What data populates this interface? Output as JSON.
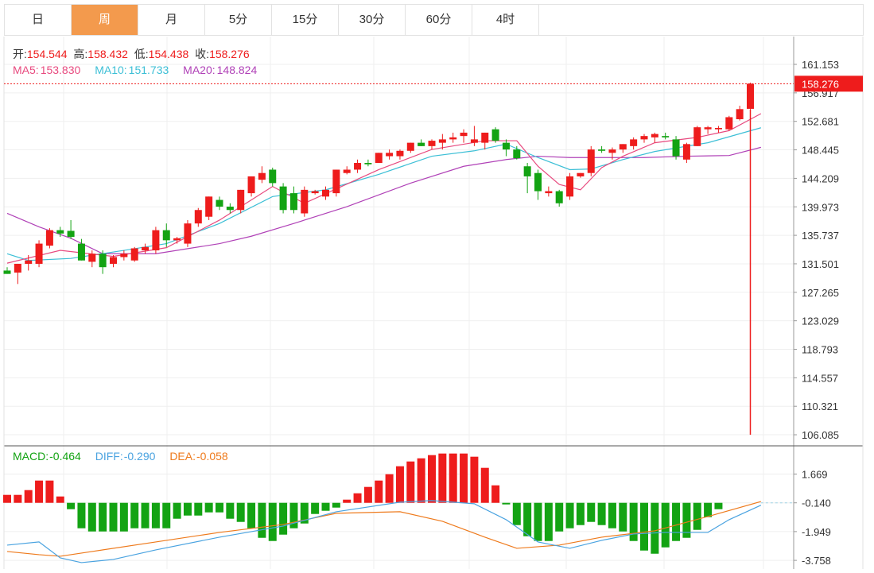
{
  "tabs": [
    {
      "label": "日",
      "active": false
    },
    {
      "label": "周",
      "active": true
    },
    {
      "label": "月",
      "active": false
    },
    {
      "label": "5分",
      "active": false
    },
    {
      "label": "15分",
      "active": false
    },
    {
      "label": "30分",
      "active": false
    },
    {
      "label": "60分",
      "active": false
    },
    {
      "label": "4时",
      "active": false
    }
  ],
  "ohlc_info": {
    "open_label": "开:",
    "open": "154.544",
    "high_label": "高:",
    "high": "158.432",
    "low_label": "低:",
    "low": "154.438",
    "close_label": "收:",
    "close": "158.276"
  },
  "ma_info": {
    "ma5_label": "MA5:",
    "ma5": "153.830",
    "ma10_label": "MA10:",
    "ma10": "151.733",
    "ma20_label": "MA20:",
    "ma20": "148.824"
  },
  "macd_info": {
    "macd_label": "MACD:",
    "macd": "-0.464",
    "diff_label": "DIFF:",
    "diff": "-0.290",
    "dea_label": "DEA:",
    "dea": "-0.058"
  },
  "colors": {
    "up": "#ee1c1c",
    "down": "#13a313",
    "ma5": "#e84a7f",
    "ma10": "#3cbfd6",
    "ma20": "#b041b7",
    "diff": "#4aa3e0",
    "dea": "#ee7a1c",
    "active_tab": "#f39a4d"
  },
  "chart_data": [
    {
      "type": "candlestick",
      "y_ticks": [
        "161.153",
        "156.917",
        "152.681",
        "148.445",
        "144.209",
        "139.973",
        "135.737",
        "131.501",
        "127.265",
        "123.029",
        "118.793",
        "114.557",
        "110.321",
        "106.085"
      ],
      "ylim": [
        105.1,
        163.0
      ],
      "last_price_label": "158.276",
      "candles": [
        [
          130.5,
          131.0,
          130.0,
          130.0
        ],
        [
          130.2,
          131.5,
          128.5,
          131.5
        ],
        [
          131.5,
          132.8,
          130.5,
          132.0
        ],
        [
          131.5,
          135.0,
          131.0,
          134.5
        ],
        [
          134.2,
          136.8,
          133.8,
          136.5
        ],
        [
          136.5,
          137.0,
          135.5,
          136.0
        ],
        [
          136.4,
          138.0,
          135.2,
          135.5
        ],
        [
          134.5,
          135.2,
          132.0,
          132.0
        ],
        [
          131.8,
          133.5,
          131.0,
          133.0
        ],
        [
          133.0,
          133.5,
          130.0,
          131.0
        ],
        [
          131.5,
          132.8,
          131.0,
          132.5
        ],
        [
          132.5,
          133.5,
          132.0,
          133.0
        ],
        [
          132.0,
          134.0,
          131.8,
          133.8
        ],
        [
          133.5,
          134.5,
          133.0,
          134.0
        ],
        [
          133.5,
          137.0,
          133.0,
          136.5
        ],
        [
          136.5,
          137.5,
          134.0,
          135.0
        ],
        [
          135.0,
          135.5,
          134.5,
          135.3
        ],
        [
          134.5,
          138.0,
          134.0,
          137.5
        ],
        [
          137.5,
          139.8,
          137.0,
          139.5
        ],
        [
          138.5,
          141.5,
          138.0,
          141.5
        ],
        [
          141.0,
          141.5,
          139.5,
          140.0
        ],
        [
          140.0,
          140.5,
          139.0,
          139.5
        ],
        [
          139.5,
          142.5,
          139.0,
          142.5
        ],
        [
          142.0,
          144.5,
          141.5,
          144.5
        ],
        [
          144.0,
          146.0,
          143.5,
          145.0
        ],
        [
          145.5,
          145.8,
          143.0,
          143.5
        ],
        [
          143.0,
          143.5,
          139.0,
          139.5
        ],
        [
          142.0,
          143.0,
          139.0,
          139.5
        ],
        [
          139.0,
          143.0,
          138.5,
          142.5
        ],
        [
          142.0,
          142.5,
          141.8,
          142.3
        ],
        [
          141.5,
          143.0,
          141.0,
          142.5
        ],
        [
          142.0,
          145.5,
          141.5,
          145.5
        ],
        [
          145.0,
          146.0,
          144.8,
          145.5
        ],
        [
          145.5,
          147.0,
          145.0,
          146.5
        ],
        [
          146.5,
          147.0,
          146.0,
          146.3
        ],
        [
          146.5,
          148.0,
          146.5,
          148.0
        ],
        [
          147.5,
          148.5,
          147.0,
          148.0
        ],
        [
          147.5,
          148.5,
          147.0,
          148.3
        ],
        [
          148.3,
          149.5,
          148.0,
          149.5
        ],
        [
          149.5,
          150.0,
          149.0,
          149.0
        ],
        [
          149.0,
          150.0,
          148.5,
          149.8
        ],
        [
          149.5,
          150.8,
          148.5,
          150.0
        ],
        [
          150.0,
          151.0,
          149.5,
          150.3
        ],
        [
          150.5,
          151.5,
          149.5,
          151.0
        ],
        [
          149.5,
          152.0,
          149.0,
          150.0
        ],
        [
          149.5,
          151.0,
          148.5,
          151.0
        ],
        [
          151.5,
          151.8,
          149.5,
          149.8
        ],
        [
          149.5,
          150.0,
          147.5,
          148.5
        ],
        [
          148.5,
          149.0,
          147.0,
          147.2
        ],
        [
          146.0,
          146.5,
          142.0,
          144.5
        ],
        [
          145.0,
          145.5,
          141.0,
          142.3
        ],
        [
          142.0,
          143.0,
          141.5,
          142.3
        ],
        [
          142.3,
          142.5,
          140.0,
          140.5
        ],
        [
          141.5,
          145.0,
          141.0,
          144.5
        ],
        [
          144.5,
          145.0,
          144.3,
          145.0
        ],
        [
          145.0,
          149.0,
          144.5,
          148.5
        ],
        [
          148.5,
          149.0,
          148.0,
          148.3
        ],
        [
          148.0,
          148.8,
          147.0,
          148.5
        ],
        [
          148.5,
          149.3,
          148.0,
          149.3
        ],
        [
          149.0,
          150.3,
          148.5,
          150.0
        ],
        [
          150.0,
          150.8,
          149.5,
          150.5
        ],
        [
          150.3,
          151.0,
          149.5,
          150.8
        ],
        [
          150.5,
          151.0,
          150.0,
          150.3
        ],
        [
          150.0,
          150.5,
          147.0,
          147.5
        ],
        [
          147.0,
          149.5,
          146.5,
          149.3
        ],
        [
          149.0,
          152.0,
          149.0,
          151.8
        ],
        [
          151.5,
          152.0,
          150.8,
          151.8
        ],
        [
          151.5,
          152.0,
          151.0,
          151.7
        ],
        [
          151.5,
          153.5,
          151.3,
          153.3
        ],
        [
          153.0,
          155.0,
          152.8,
          154.5
        ],
        [
          154.544,
          158.432,
          154.438,
          158.276
        ]
      ],
      "ma5": [
        [
          0,
          131.6
        ],
        [
          5,
          133.5
        ],
        [
          10,
          132.6
        ],
        [
          15,
          133.9
        ],
        [
          20,
          138.0
        ],
        [
          25,
          143.0
        ],
        [
          28,
          140.5
        ],
        [
          35,
          145.5
        ],
        [
          40,
          148.5
        ],
        [
          45,
          149.8
        ],
        [
          48,
          149.8
        ],
        [
          50,
          146.0
        ],
        [
          52,
          143.3
        ],
        [
          54,
          142.5
        ],
        [
          56,
          145.8
        ],
        [
          58,
          147.5
        ],
        [
          61,
          149.5
        ],
        [
          65,
          150.3
        ],
        [
          68,
          151.3
        ],
        [
          71,
          153.83
        ]
      ],
      "ma10": [
        [
          0,
          133.0
        ],
        [
          2,
          132.0
        ],
        [
          6,
          132.3
        ],
        [
          11,
          133.5
        ],
        [
          15,
          134.5
        ],
        [
          20,
          137.5
        ],
        [
          25,
          141.5
        ],
        [
          30,
          142.5
        ],
        [
          35,
          144.8
        ],
        [
          40,
          147.5
        ],
        [
          44,
          148.3
        ],
        [
          47,
          149.3
        ],
        [
          50,
          147.3
        ],
        [
          53,
          145.5
        ],
        [
          55,
          145.6
        ],
        [
          58,
          147.0
        ],
        [
          61,
          148.2
        ],
        [
          66,
          149.5
        ],
        [
          71,
          151.73
        ]
      ],
      "ma20": [
        [
          0,
          139.0
        ],
        [
          3,
          137.0
        ],
        [
          6,
          135.3
        ],
        [
          9,
          133.0
        ],
        [
          14,
          133.0
        ],
        [
          20,
          134.5
        ],
        [
          23,
          135.6
        ],
        [
          27,
          137.5
        ],
        [
          32,
          140.0
        ],
        [
          38,
          143.5
        ],
        [
          43,
          146.0
        ],
        [
          47,
          147.0
        ],
        [
          50,
          147.5
        ],
        [
          53,
          147.3
        ],
        [
          60,
          147.3
        ],
        [
          64,
          147.5
        ],
        [
          68,
          147.6
        ],
        [
          71,
          148.82
        ]
      ],
      "spike": {
        "index": 70,
        "low": 106.085
      }
    },
    {
      "type": "macd",
      "y_ticks": [
        "1.669",
        "-0.140",
        "-1.949",
        "-3.758"
      ],
      "ylim": [
        -4.2,
        2.5
      ],
      "baseline": -0.14,
      "histogram": [
        0.5,
        0.5,
        0.8,
        1.4,
        1.4,
        0.4,
        -0.4,
        -1.6,
        -1.8,
        -1.8,
        -1.8,
        -1.8,
        -1.6,
        -1.6,
        -1.6,
        -1.6,
        -1.0,
        -0.8,
        -0.8,
        -0.6,
        -0.6,
        -1.0,
        -1.2,
        -1.6,
        -2.2,
        -2.4,
        -2.0,
        -1.6,
        -1.3,
        -0.7,
        -0.5,
        -0.3,
        0.2,
        0.6,
        1.0,
        1.4,
        1.8,
        2.3,
        2.6,
        2.8,
        3.0,
        3.1,
        3.1,
        3.1,
        2.9,
        2.2,
        1.1,
        -0.1,
        -1.4,
        -2.1,
        -2.4,
        -2.4,
        -1.8,
        -1.6,
        -1.4,
        -1.2,
        -1.4,
        -1.6,
        -1.8,
        -2.4,
        -3.0,
        -3.2,
        -2.8,
        -2.4,
        -2.2,
        -1.7,
        -0.9,
        -0.4
      ],
      "diff": [
        [
          0,
          -2.8
        ],
        [
          3,
          -2.6
        ],
        [
          5,
          -3.6
        ],
        [
          7,
          -3.9
        ],
        [
          10,
          -3.7
        ],
        [
          14,
          -3.1
        ],
        [
          20,
          -2.3
        ],
        [
          26,
          -1.6
        ],
        [
          31,
          -0.7
        ],
        [
          37,
          -0.1
        ],
        [
          40,
          0.0
        ],
        [
          44,
          -0.2
        ],
        [
          47,
          -1.2
        ],
        [
          50,
          -2.6
        ],
        [
          53,
          -3.0
        ],
        [
          56,
          -2.5
        ],
        [
          59,
          -2.1
        ],
        [
          62,
          -2.0
        ],
        [
          65,
          -2.0
        ],
        [
          66,
          -2.0
        ],
        [
          68,
          -1.2
        ],
        [
          71,
          -0.29
        ]
      ],
      "dea": [
        [
          0,
          -3.2
        ],
        [
          3,
          -3.4
        ],
        [
          5,
          -3.5
        ],
        [
          8,
          -3.2
        ],
        [
          14,
          -2.6
        ],
        [
          20,
          -2.0
        ],
        [
          26,
          -1.5
        ],
        [
          31,
          -0.8
        ],
        [
          37,
          -0.7
        ],
        [
          41,
          -1.3
        ],
        [
          45,
          -2.3
        ],
        [
          48,
          -3.0
        ],
        [
          52,
          -2.8
        ],
        [
          56,
          -2.3
        ],
        [
          61,
          -1.9
        ],
        [
          66,
          -1.0
        ],
        [
          71,
          -0.06
        ]
      ]
    }
  ]
}
